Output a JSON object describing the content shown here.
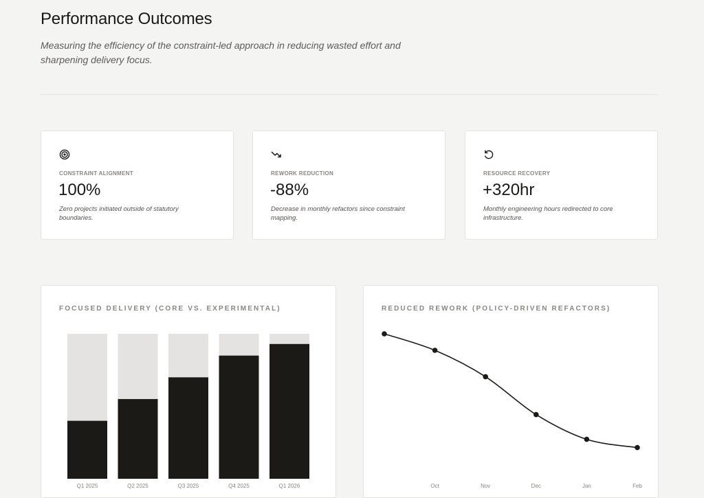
{
  "header": {
    "title": "Performance Outcomes",
    "subtitle": "Measuring the efficiency of the constraint-led approach in reducing wasted effort and sharpening delivery focus."
  },
  "metrics": [
    {
      "icon": "target-icon",
      "label": "CONSTRAINT ALIGNMENT",
      "value": "100%",
      "description": "Zero projects initiated outside of statutory boundaries."
    },
    {
      "icon": "trending-down-icon",
      "label": "REWORK REDUCTION",
      "value": "-88%",
      "description": "Decrease in monthly refactors since constraint mapping."
    },
    {
      "icon": "refresh-icon",
      "label": "RESOURCE RECOVERY",
      "value": "+320hr",
      "description": "Monthly engineering hours redirected to core infrastructure."
    }
  ],
  "colors": {
    "core": "#1c1a17",
    "experimental": "#e4e3e1",
    "line": "#1c1a17"
  },
  "chart_data": [
    {
      "type": "bar",
      "title": "FOCUSED DELIVERY (CORE VS. EXPERIMENTAL)",
      "categories": [
        "Q1 2025",
        "Q2 2025",
        "Q3 2025",
        "Q4 2025",
        "Q1 2026"
      ],
      "stacked": true,
      "series": [
        {
          "values": [
            40,
            55,
            70,
            85,
            93
          ]
        },
        {
          "values": [
            60,
            45,
            30,
            15,
            7
          ]
        }
      ],
      "ylim": [
        0,
        100
      ],
      "grid": false
    },
    {
      "type": "line",
      "title": "REDUCED REWORK (POLICY-DRIVEN REFACTORS)",
      "categories": [
        "",
        "Oct",
        "Nov",
        "Dec",
        "Jan",
        "Feb"
      ],
      "values": [
        100,
        90,
        74,
        51,
        36,
        31
      ],
      "ylim": [
        0,
        100
      ],
      "grid": false
    }
  ]
}
